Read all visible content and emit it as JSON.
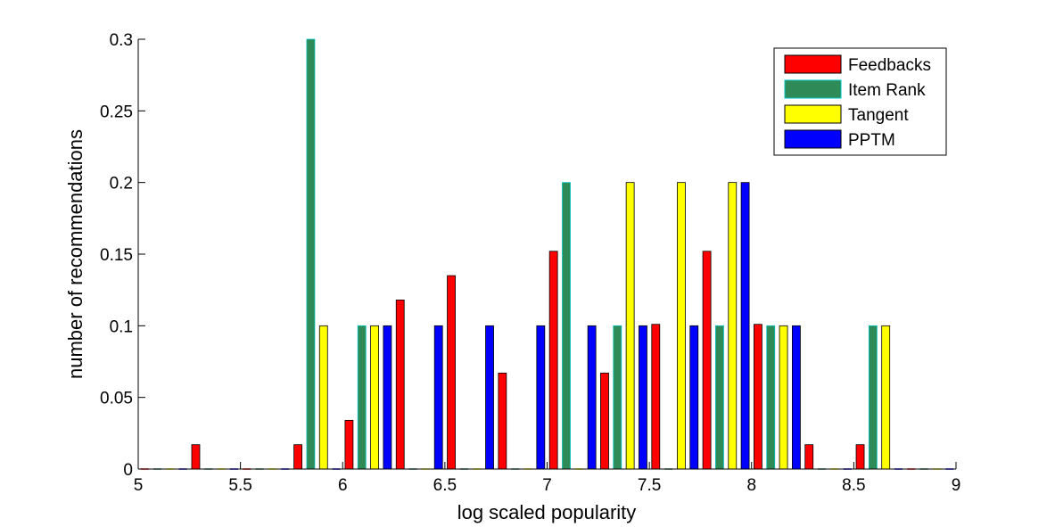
{
  "chart_data": {
    "type": "bar",
    "xlabel": "log scaled popularity",
    "ylabel": "number of recommendations",
    "xlim": [
      5,
      9
    ],
    "ylim": [
      0,
      0.3
    ],
    "xticks": [
      "5",
      "5.5",
      "6",
      "6.5",
      "7",
      "7.5",
      "8",
      "8.5",
      "9"
    ],
    "yticks": [
      "0",
      "0.05",
      "0.1",
      "0.15",
      "0.2",
      "0.25",
      "0.3"
    ],
    "x": [
      5.125,
      5.375,
      5.625,
      5.875,
      6.125,
      6.375,
      6.625,
      6.875,
      7.125,
      7.375,
      7.625,
      7.875,
      8.125,
      8.375,
      8.625,
      8.875
    ],
    "legend_position": "top-right",
    "series": [
      {
        "name": "Feedbacks",
        "color": "#ff0000",
        "values": [
          0,
          0.017,
          0,
          0.017,
          0.034,
          0.118,
          0.135,
          0.067,
          0.152,
          0.067,
          0.101,
          0.152,
          0.101,
          0.017,
          0.017,
          0
        ]
      },
      {
        "name": "Item Rank",
        "color": "#2e8b57",
        "edge": "#00c0c0",
        "values": [
          0,
          0,
          0,
          0.3,
          0.1,
          0,
          0,
          0,
          0.2,
          0.1,
          0,
          0.1,
          0.1,
          0,
          0.1,
          0
        ]
      },
      {
        "name": "Tangent",
        "color": "#ffff00",
        "values": [
          0,
          0,
          0,
          0.1,
          0.1,
          0,
          0,
          0,
          0,
          0.2,
          0.2,
          0.2,
          0.1,
          0,
          0.1,
          0
        ]
      },
      {
        "name": "PPTM",
        "color": "#0000ff",
        "values": [
          0,
          0,
          0,
          0,
          0.1,
          0.1,
          0.1,
          0.1,
          0.1,
          0.1,
          0.1,
          0.2,
          0.1,
          0,
          0,
          0
        ]
      }
    ]
  }
}
